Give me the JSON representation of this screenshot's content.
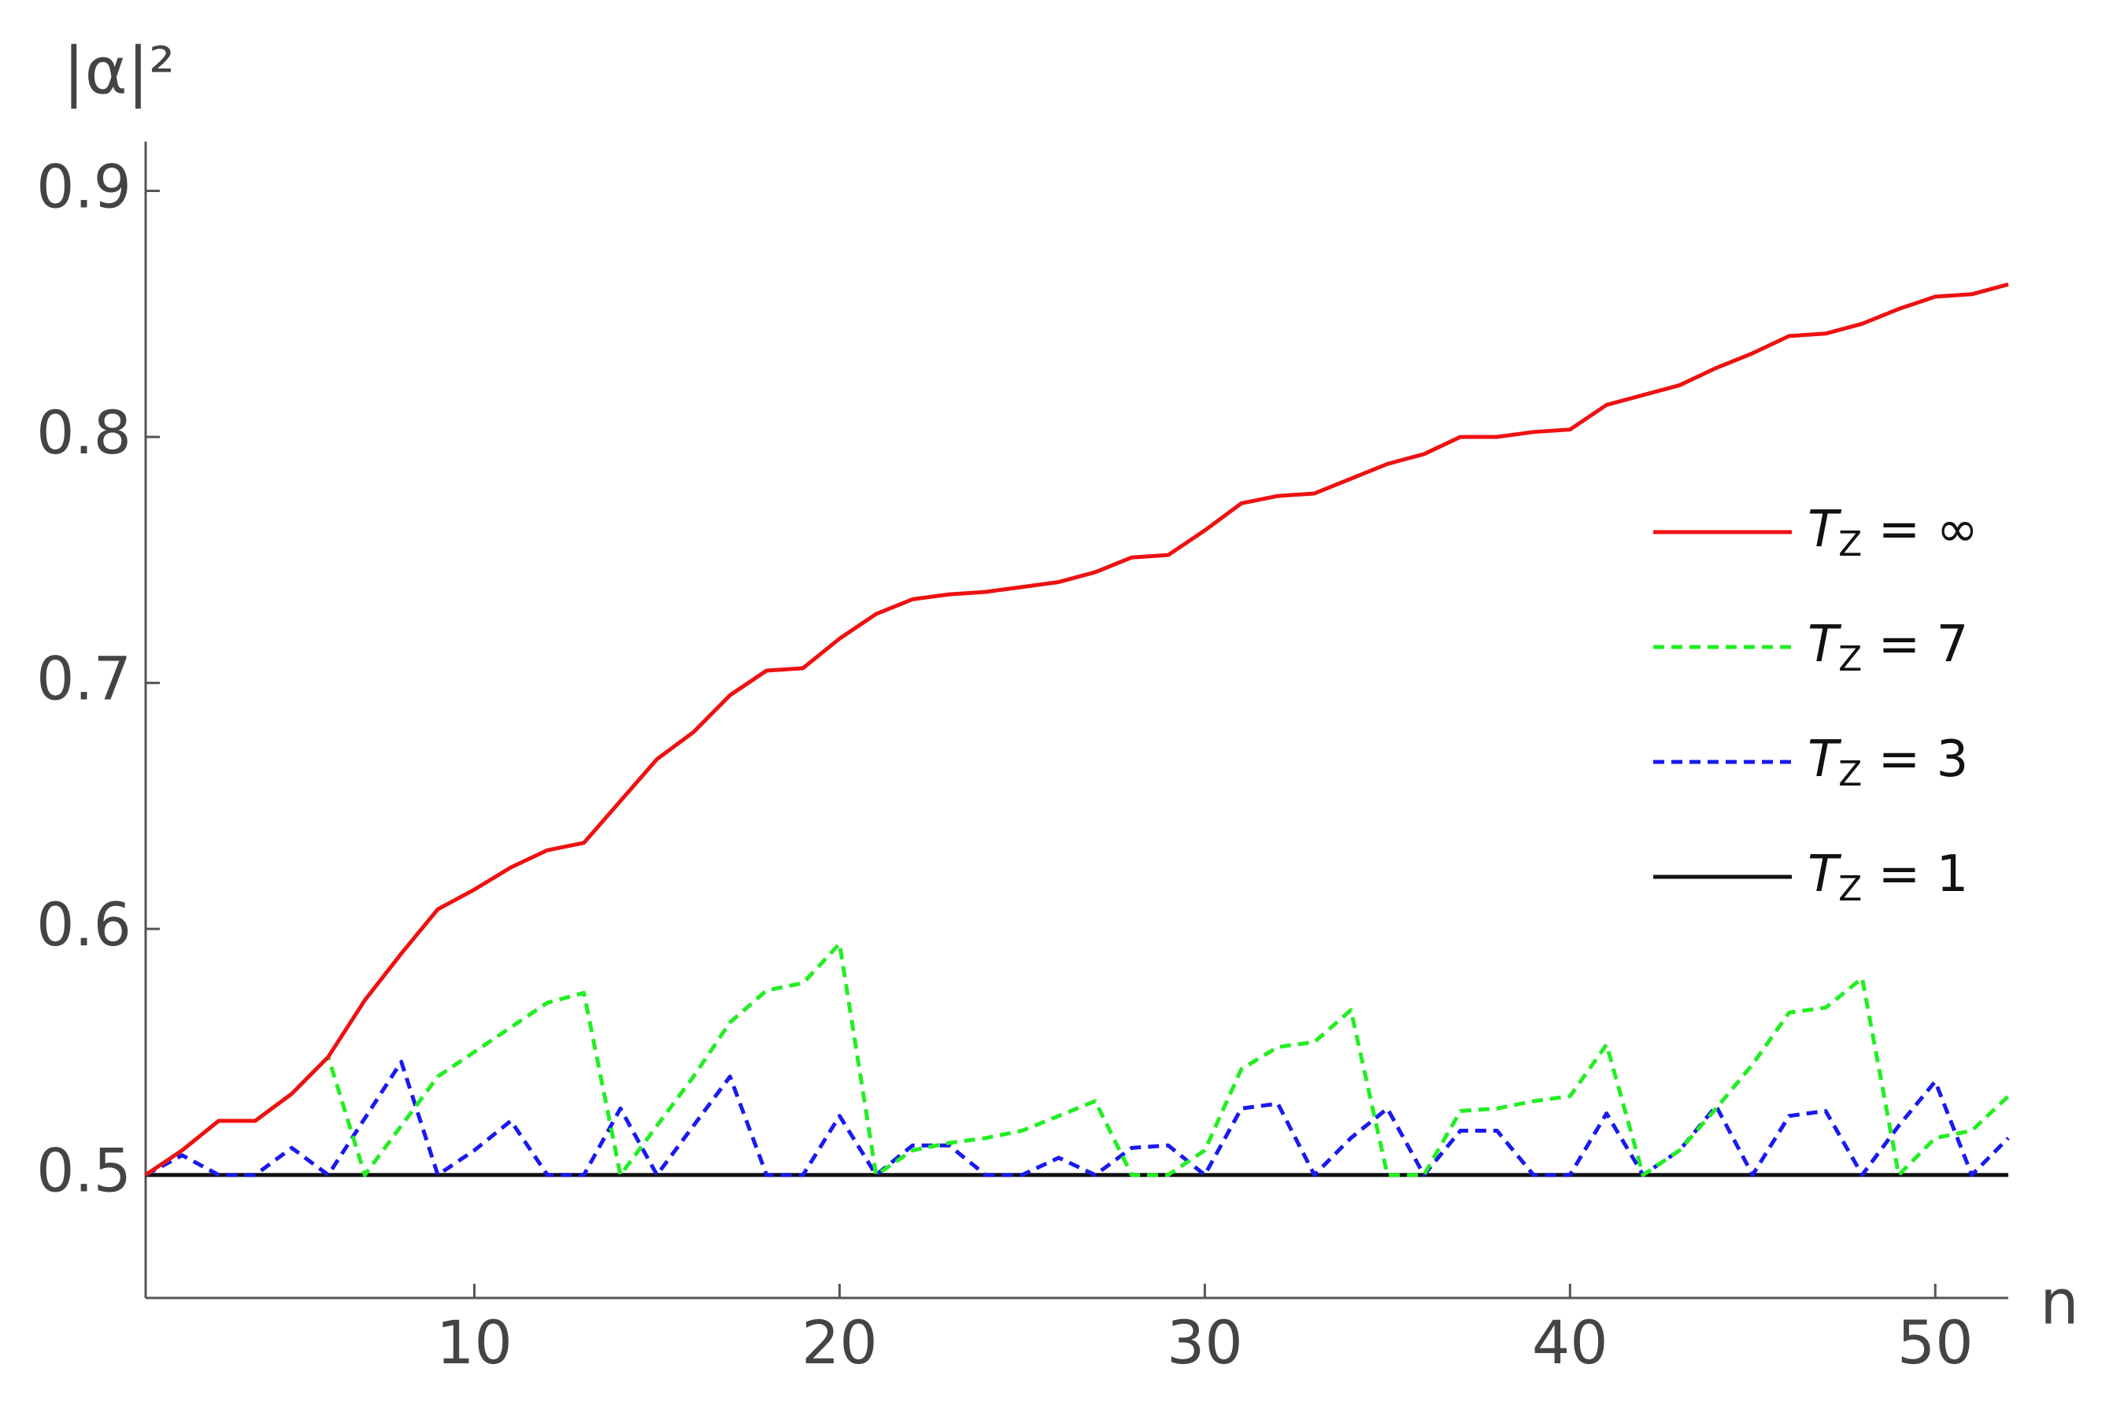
{
  "chart_data": {
    "type": "line",
    "ylabel": "|α|²",
    "xlabel": "n",
    "x": [
      1,
      2,
      3,
      4,
      5,
      6,
      7,
      8,
      9,
      10,
      11,
      12,
      13,
      14,
      15,
      16,
      17,
      18,
      19,
      20,
      21,
      22,
      23,
      24,
      25,
      26,
      27,
      28,
      29,
      30,
      31,
      32,
      33,
      34,
      35,
      36,
      37,
      38,
      39,
      40,
      41,
      42,
      43,
      44,
      45,
      46,
      47,
      48,
      49,
      50,
      51,
      52
    ],
    "xlim": [
      1,
      52
    ],
    "xticks": [
      10,
      20,
      30,
      40,
      50
    ],
    "ylim": [
      0.45,
      0.92
    ],
    "yticks": [
      0.5,
      0.6,
      0.7,
      0.8,
      0.9
    ],
    "legend": "right",
    "series": [
      {
        "name": "TZ = ∞",
        "color": "#ee1111",
        "dashed": false,
        "values": [
          0.5,
          0.51,
          0.522,
          0.522,
          0.533,
          0.548,
          0.571,
          0.59,
          0.608,
          0.616,
          0.625,
          0.632,
          0.635,
          0.652,
          0.669,
          0.68,
          0.695,
          0.705,
          0.706,
          0.718,
          0.728,
          0.734,
          0.736,
          0.737,
          0.739,
          0.741,
          0.745,
          0.751,
          0.752,
          0.762,
          0.773,
          0.776,
          0.777,
          0.783,
          0.789,
          0.793,
          0.8,
          0.8,
          0.802,
          0.803,
          0.813,
          0.817,
          0.821,
          0.828,
          0.834,
          0.841,
          0.842,
          0.846,
          0.852,
          0.857,
          0.858,
          0.862
        ]
      },
      {
        "name": "TZ = 7",
        "color": "#22ee22",
        "dashed": true,
        "values": [
          0.5,
          0.51,
          0.522,
          0.522,
          0.533,
          0.548,
          0.5,
          0.52,
          0.54,
          0.55,
          0.56,
          0.57,
          0.574,
          0.5,
          0.52,
          0.54,
          0.562,
          0.575,
          0.578,
          0.594,
          0.5,
          0.51,
          0.513,
          0.515,
          0.518,
          0.524,
          0.53,
          0.5,
          0.5,
          0.51,
          0.543,
          0.552,
          0.554,
          0.567,
          0.5,
          0.5,
          0.526,
          0.527,
          0.53,
          0.532,
          0.553,
          0.5,
          0.51,
          0.527,
          0.545,
          0.566,
          0.568,
          0.58,
          0.5,
          0.515,
          0.518,
          0.532
        ]
      },
      {
        "name": "TZ = 3",
        "color": "#1a1aee",
        "dashed": true,
        "values": [
          0.5,
          0.508,
          0.5,
          0.5,
          0.511,
          0.5,
          0.523,
          0.546,
          0.5,
          0.51,
          0.522,
          0.5,
          0.5,
          0.527,
          0.5,
          0.52,
          0.54,
          0.5,
          0.5,
          0.524,
          0.5,
          0.512,
          0.512,
          0.5,
          0.5,
          0.507,
          0.5,
          0.511,
          0.512,
          0.5,
          0.527,
          0.529,
          0.5,
          0.515,
          0.527,
          0.5,
          0.518,
          0.518,
          0.5,
          0.5,
          0.525,
          0.5,
          0.51,
          0.528,
          0.5,
          0.524,
          0.526,
          0.5,
          0.52,
          0.538,
          0.5,
          0.515
        ]
      },
      {
        "name": "TZ = 1",
        "color": "#111111",
        "dashed": false,
        "values": [
          0.5,
          0.5,
          0.5,
          0.5,
          0.5,
          0.5,
          0.5,
          0.5,
          0.5,
          0.5,
          0.5,
          0.5,
          0.5,
          0.5,
          0.5,
          0.5,
          0.5,
          0.5,
          0.5,
          0.5,
          0.5,
          0.5,
          0.5,
          0.5,
          0.5,
          0.5,
          0.5,
          0.5,
          0.5,
          0.5,
          0.5,
          0.5,
          0.5,
          0.5,
          0.5,
          0.5,
          0.5,
          0.5,
          0.5,
          0.5,
          0.5,
          0.5,
          0.5,
          0.5,
          0.5,
          0.5,
          0.5,
          0.5,
          0.5,
          0.5,
          0.5,
          0.5
        ]
      }
    ]
  }
}
